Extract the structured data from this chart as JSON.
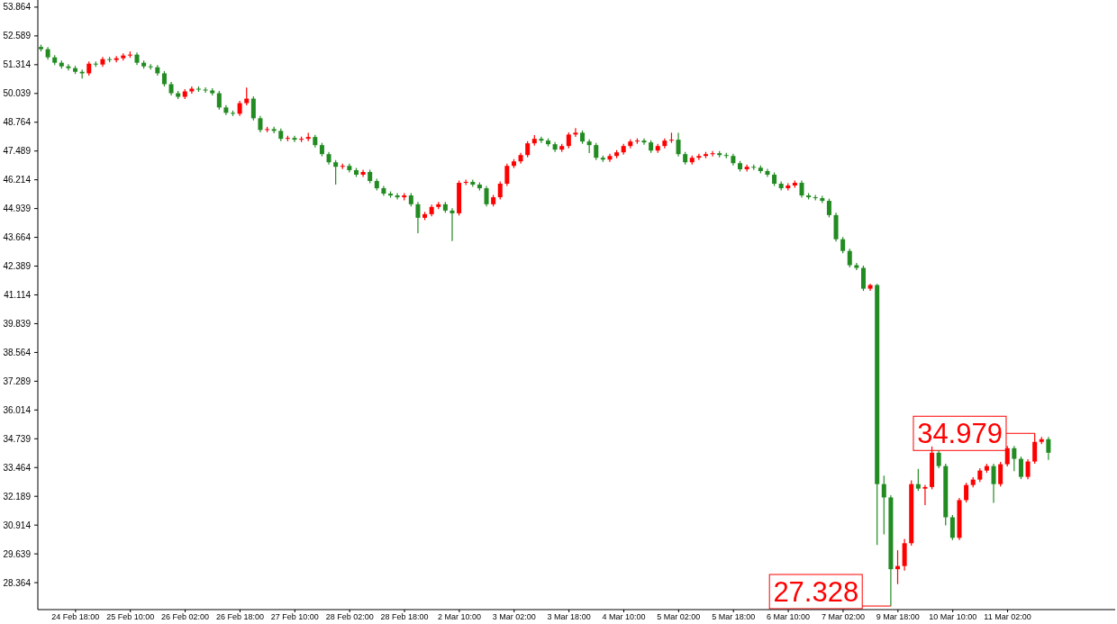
{
  "chart_data": {
    "type": "candlestick",
    "categories": [
      null,
      null,
      null,
      null,
      null,
      "24 Feb 18:00",
      null,
      null,
      null,
      null,
      null,
      null,
      null,
      "25 Feb 10:00",
      null,
      null,
      null,
      null,
      null,
      null,
      null,
      "26 Feb 02:00",
      null,
      null,
      null,
      null,
      null,
      null,
      null,
      "26 Feb 18:00",
      null,
      null,
      null,
      null,
      null,
      null,
      null,
      "27 Feb 10:00",
      null,
      null,
      null,
      null,
      null,
      null,
      null,
      "28 Feb 02:00",
      null,
      null,
      null,
      null,
      null,
      null,
      null,
      "28 Feb 18:00",
      null,
      null,
      null,
      null,
      null,
      null,
      null,
      "2 Mar 10:00",
      null,
      null,
      null,
      null,
      null,
      null,
      null,
      "3 Mar 02:00",
      null,
      null,
      null,
      null,
      null,
      null,
      null,
      "3 Mar 18:00",
      null,
      null,
      null,
      null,
      null,
      null,
      null,
      "4 Mar 10:00",
      null,
      null,
      null,
      null,
      null,
      null,
      null,
      "5 Mar 02:00",
      null,
      null,
      null,
      null,
      null,
      null,
      null,
      "5 Mar 18:00",
      null,
      null,
      null,
      null,
      null,
      null,
      null,
      "6 Mar 10:00",
      null,
      null,
      null,
      null,
      null,
      null,
      null,
      "7 Mar 02:00",
      null,
      null,
      null,
      null,
      null,
      null,
      null,
      "9 Mar 18:00",
      null,
      null,
      null,
      null,
      null,
      null,
      null,
      "10 Mar 10:00",
      null,
      null,
      null,
      null,
      null,
      null,
      null,
      "11 Mar 02:00",
      null,
      null,
      null,
      null,
      null,
      null
    ],
    "ohlc": [
      [
        52.1,
        52.2,
        51.9,
        52.0
      ],
      [
        52.0,
        52.1,
        51.54,
        51.64
      ],
      [
        51.64,
        51.74,
        51.3,
        51.4
      ],
      [
        51.4,
        51.5,
        51.14,
        51.24
      ],
      [
        51.24,
        51.34,
        51.06,
        51.16
      ],
      [
        51.16,
        51.26,
        50.9,
        51.0
      ],
      [
        51.0,
        51.1,
        50.7,
        50.93
      ],
      [
        50.93,
        51.46,
        50.83,
        51.36
      ],
      [
        51.36,
        51.46,
        51.22,
        51.32
      ],
      [
        51.32,
        51.66,
        51.22,
        51.56
      ],
      [
        51.56,
        51.66,
        51.42,
        51.52
      ],
      [
        51.52,
        51.7,
        51.42,
        51.6
      ],
      [
        51.6,
        51.82,
        51.5,
        51.72
      ],
      [
        51.72,
        51.9,
        51.62,
        51.76
      ],
      [
        51.76,
        51.86,
        51.3,
        51.4
      ],
      [
        51.4,
        51.5,
        51.14,
        51.24
      ],
      [
        51.24,
        51.34,
        51.1,
        51.2
      ],
      [
        51.2,
        51.3,
        50.83,
        50.93
      ],
      [
        50.93,
        51.03,
        50.35,
        50.45
      ],
      [
        50.45,
        50.55,
        49.95,
        50.05
      ],
      [
        50.05,
        50.15,
        49.79,
        49.89
      ],
      [
        49.89,
        50.23,
        49.79,
        50.13
      ],
      [
        50.13,
        50.35,
        50.03,
        50.25
      ],
      [
        50.25,
        50.35,
        50.11,
        50.21
      ],
      [
        50.21,
        50.31,
        50.07,
        50.17
      ],
      [
        50.17,
        50.27,
        49.95,
        50.05
      ],
      [
        50.05,
        50.15,
        49.32,
        49.42
      ],
      [
        49.42,
        49.52,
        49.08,
        49.18
      ],
      [
        49.18,
        49.28,
        49.04,
        49.14
      ],
      [
        49.14,
        49.71,
        49.04,
        49.61
      ],
      [
        49.61,
        50.3,
        49.51,
        49.81
      ],
      [
        49.81,
        49.91,
        48.84,
        48.94
      ],
      [
        48.94,
        49.04,
        48.32,
        48.42
      ],
      [
        48.42,
        48.56,
        48.32,
        48.46
      ],
      [
        48.46,
        48.56,
        48.28,
        48.38
      ],
      [
        48.38,
        48.48,
        47.93,
        48.03
      ],
      [
        48.03,
        48.17,
        47.93,
        48.07
      ],
      [
        48.07,
        48.17,
        47.89,
        47.99
      ],
      [
        47.99,
        48.13,
        47.89,
        48.03
      ],
      [
        48.03,
        48.3,
        47.93,
        48.11
      ],
      [
        48.11,
        48.21,
        47.65,
        47.75
      ],
      [
        47.75,
        47.85,
        47.25,
        47.35
      ],
      [
        47.35,
        47.45,
        46.89,
        46.99
      ],
      [
        46.99,
        47.09,
        46.0,
        46.79
      ],
      [
        46.79,
        46.93,
        46.69,
        46.83
      ],
      [
        46.83,
        46.93,
        46.54,
        46.64
      ],
      [
        46.64,
        46.74,
        46.34,
        46.44
      ],
      [
        46.44,
        46.66,
        46.34,
        46.56
      ],
      [
        46.56,
        46.66,
        46.06,
        46.16
      ],
      [
        46.16,
        46.26,
        45.74,
        45.84
      ],
      [
        45.84,
        45.94,
        45.5,
        45.6
      ],
      [
        45.6,
        45.7,
        45.42,
        45.52
      ],
      [
        45.52,
        45.62,
        45.34,
        45.44
      ],
      [
        45.44,
        45.62,
        45.3,
        45.52
      ],
      [
        45.52,
        45.62,
        45.03,
        45.13
      ],
      [
        45.13,
        45.23,
        43.85,
        44.53
      ],
      [
        44.53,
        44.79,
        44.43,
        44.69
      ],
      [
        44.69,
        45.11,
        44.59,
        45.01
      ],
      [
        45.01,
        45.23,
        44.91,
        45.13
      ],
      [
        45.13,
        45.23,
        44.75,
        44.85
      ],
      [
        44.85,
        44.95,
        43.5,
        44.73
      ],
      [
        44.73,
        46.18,
        44.63,
        46.08
      ],
      [
        46.08,
        46.22,
        45.98,
        46.12
      ],
      [
        46.12,
        46.22,
        45.9,
        46.0
      ],
      [
        46.0,
        46.1,
        45.74,
        45.84
      ],
      [
        45.84,
        45.94,
        45.03,
        45.13
      ],
      [
        45.13,
        45.54,
        45.03,
        45.44
      ],
      [
        45.44,
        46.14,
        45.34,
        46.04
      ],
      [
        46.04,
        46.93,
        45.94,
        46.83
      ],
      [
        46.83,
        47.13,
        46.73,
        47.03
      ],
      [
        47.03,
        47.41,
        46.93,
        47.31
      ],
      [
        47.31,
        47.93,
        47.21,
        47.83
      ],
      [
        47.83,
        48.2,
        47.73,
        48.03
      ],
      [
        48.03,
        48.13,
        47.85,
        47.95
      ],
      [
        47.95,
        48.05,
        47.69,
        47.79
      ],
      [
        47.79,
        47.89,
        47.45,
        47.55
      ],
      [
        47.55,
        47.81,
        47.45,
        47.71
      ],
      [
        47.71,
        48.32,
        47.61,
        48.22
      ],
      [
        48.22,
        48.5,
        48.12,
        48.3
      ],
      [
        48.3,
        48.4,
        47.81,
        47.91
      ],
      [
        47.91,
        48.01,
        47.4,
        47.75
      ],
      [
        47.75,
        47.85,
        47.09,
        47.19
      ],
      [
        47.19,
        47.29,
        47.01,
        47.11
      ],
      [
        47.11,
        47.37,
        47.01,
        47.27
      ],
      [
        47.27,
        47.53,
        47.17,
        47.43
      ],
      [
        47.43,
        47.81,
        47.33,
        47.71
      ],
      [
        47.71,
        48.01,
        47.61,
        47.91
      ],
      [
        47.91,
        48.05,
        47.81,
        47.95
      ],
      [
        47.95,
        48.05,
        47.77,
        47.87
      ],
      [
        47.87,
        47.97,
        47.41,
        47.51
      ],
      [
        47.51,
        47.81,
        47.41,
        47.71
      ],
      [
        47.71,
        48.05,
        47.61,
        47.95
      ],
      [
        47.95,
        48.3,
        47.85,
        47.99
      ],
      [
        47.99,
        48.3,
        47.25,
        47.35
      ],
      [
        47.35,
        47.45,
        46.89,
        46.99
      ],
      [
        46.99,
        47.29,
        46.89,
        47.19
      ],
      [
        47.19,
        47.37,
        47.09,
        47.27
      ],
      [
        47.27,
        47.45,
        47.17,
        47.35
      ],
      [
        47.35,
        47.49,
        47.25,
        47.39
      ],
      [
        47.39,
        47.49,
        47.21,
        47.31
      ],
      [
        47.31,
        47.41,
        47.17,
        47.27
      ],
      [
        47.27,
        47.37,
        46.85,
        46.95
      ],
      [
        46.95,
        47.05,
        46.58,
        46.68
      ],
      [
        46.68,
        46.89,
        46.58,
        46.79
      ],
      [
        46.79,
        46.89,
        46.65,
        46.75
      ],
      [
        46.75,
        46.85,
        46.5,
        46.6
      ],
      [
        46.6,
        46.7,
        46.34,
        46.44
      ],
      [
        46.44,
        46.54,
        45.94,
        46.04
      ],
      [
        46.04,
        46.14,
        45.74,
        45.84
      ],
      [
        45.84,
        46.06,
        45.74,
        45.96
      ],
      [
        45.96,
        46.18,
        45.86,
        46.08
      ],
      [
        46.08,
        46.18,
        45.42,
        45.52
      ],
      [
        45.52,
        45.62,
        45.34,
        45.44
      ],
      [
        45.44,
        45.54,
        45.3,
        45.4
      ],
      [
        45.4,
        45.5,
        45.18,
        45.28
      ],
      [
        45.28,
        45.38,
        44.55,
        44.65
      ],
      [
        44.65,
        44.75,
        43.48,
        43.58
      ],
      [
        43.58,
        43.68,
        42.96,
        43.06
      ],
      [
        43.06,
        43.16,
        42.33,
        42.43
      ],
      [
        42.43,
        42.53,
        42.21,
        42.31
      ],
      [
        42.31,
        42.41,
        41.29,
        41.39
      ],
      [
        41.39,
        41.6,
        41.29,
        41.55
      ],
      [
        41.55,
        41.6,
        30.03,
        32.73
      ],
      [
        32.73,
        33.1,
        30.5,
        32.14
      ],
      [
        32.14,
        32.24,
        27.328,
        28.96
      ],
      [
        28.96,
        29.8,
        28.3,
        29.1
      ],
      [
        29.1,
        30.3,
        28.9,
        30.11
      ],
      [
        30.11,
        32.9,
        30.0,
        32.73
      ],
      [
        32.73,
        33.4,
        32.43,
        32.53
      ],
      [
        32.53,
        32.7,
        31.8,
        32.6
      ],
      [
        32.6,
        34.4,
        32.5,
        34.12
      ],
      [
        34.12,
        34.22,
        33.43,
        33.53
      ],
      [
        33.53,
        33.63,
        30.9,
        31.26
      ],
      [
        31.26,
        31.36,
        30.25,
        30.35
      ],
      [
        30.35,
        32.12,
        30.25,
        32.02
      ],
      [
        32.02,
        32.79,
        31.92,
        32.69
      ],
      [
        32.69,
        33.03,
        32.59,
        32.93
      ],
      [
        32.93,
        33.43,
        32.83,
        33.33
      ],
      [
        33.33,
        33.63,
        33.23,
        33.53
      ],
      [
        33.53,
        33.63,
        31.9,
        32.73
      ],
      [
        32.73,
        33.71,
        32.63,
        33.61
      ],
      [
        33.61,
        34.42,
        33.51,
        34.32
      ],
      [
        34.32,
        34.42,
        33.3,
        33.85
      ],
      [
        33.85,
        33.95,
        32.95,
        33.05
      ],
      [
        33.05,
        33.83,
        32.95,
        33.73
      ],
      [
        33.73,
        34.979,
        33.63,
        34.6
      ],
      [
        34.6,
        34.82,
        34.5,
        34.72
      ],
      [
        34.72,
        34.82,
        33.8,
        34.12
      ]
    ],
    "colors": [
      "#228b22",
      "#228b22",
      "#228b22",
      "#228b22",
      "#228b22",
      "#228b22",
      "#228b22",
      "#ff0000",
      "#228b22",
      "#ff0000",
      "#228b22",
      "#ff0000",
      "#ff0000",
      "#ff0000",
      "#228b22",
      "#228b22",
      "#228b22",
      "#228b22",
      "#228b22",
      "#228b22",
      "#228b22",
      "#ff0000",
      "#ff0000",
      "#228b22",
      "#228b22",
      "#228b22",
      "#228b22",
      "#228b22",
      "#228b22",
      "#ff0000",
      "#ff0000",
      "#228b22",
      "#228b22",
      "#ff0000",
      "#228b22",
      "#228b22",
      "#ff0000",
      "#228b22",
      "#ff0000",
      "#ff0000",
      "#228b22",
      "#228b22",
      "#228b22",
      "#228b22",
      "#ff0000",
      "#228b22",
      "#228b22",
      "#ff0000",
      "#228b22",
      "#228b22",
      "#228b22",
      "#228b22",
      "#228b22",
      "#ff0000",
      "#228b22",
      "#228b22",
      "#ff0000",
      "#ff0000",
      "#ff0000",
      "#228b22",
      "#228b22",
      "#ff0000",
      "#ff0000",
      "#228b22",
      "#228b22",
      "#228b22",
      "#ff0000",
      "#ff0000",
      "#ff0000",
      "#ff0000",
      "#ff0000",
      "#ff0000",
      "#ff0000",
      "#228b22",
      "#228b22",
      "#228b22",
      "#ff0000",
      "#ff0000",
      "#ff0000",
      "#228b22",
      "#228b22",
      "#228b22",
      "#228b22",
      "#ff0000",
      "#ff0000",
      "#ff0000",
      "#ff0000",
      "#ff0000",
      "#228b22",
      "#228b22",
      "#ff0000",
      "#ff0000",
      "#ff0000",
      "#228b22",
      "#228b22",
      "#ff0000",
      "#ff0000",
      "#ff0000",
      "#ff0000",
      "#228b22",
      "#228b22",
      "#228b22",
      "#228b22",
      "#ff0000",
      "#228b22",
      "#228b22",
      "#228b22",
      "#228b22",
      "#228b22",
      "#ff0000",
      "#ff0000",
      "#228b22",
      "#228b22",
      "#228b22",
      "#228b22",
      "#228b22",
      "#228b22",
      "#228b22",
      "#228b22",
      "#228b22",
      "#228b22",
      "#ff0000",
      "#228b22",
      "#228b22",
      "#228b22",
      "#ff0000",
      "#ff0000",
      "#ff0000",
      "#228b22",
      "#ff0000",
      "#ff0000",
      "#228b22",
      "#228b22",
      "#228b22",
      "#ff0000",
      "#ff0000",
      "#ff0000",
      "#ff0000",
      "#ff0000",
      "#228b22",
      "#ff0000",
      "#ff0000",
      "#228b22",
      "#228b22",
      "#ff0000",
      "#ff0000",
      "#ff0000",
      "#228b22"
    ],
    "ylim": [
      27.17,
      54.18
    ],
    "yticks": [
      53.864,
      52.589,
      51.314,
      50.039,
      48.764,
      47.489,
      46.214,
      44.939,
      43.664,
      42.389,
      41.114,
      39.839,
      38.564,
      37.289,
      36.014,
      34.739,
      33.464,
      32.189,
      30.914,
      29.639,
      28.364
    ],
    "annotations": [
      "34.979",
      "27.328"
    ]
  }
}
